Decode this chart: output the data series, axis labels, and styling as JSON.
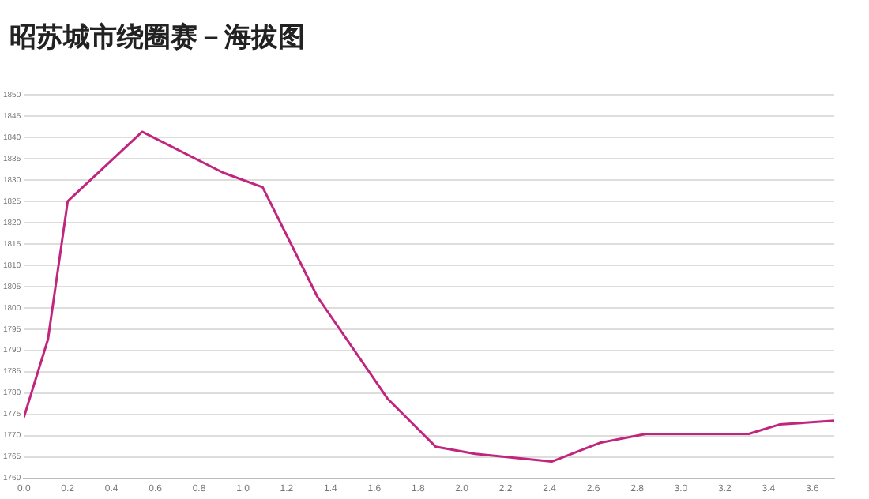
{
  "chart_data": {
    "type": "line",
    "title": "昭苏城市绕圈赛－海拔图",
    "x": [
      0,
      0.11,
      0.2,
      0.54,
      0.91,
      1.09,
      1.34,
      1.66,
      1.88,
      2.06,
      2.41,
      2.63,
      2.84,
      3.31,
      3.45,
      3.7
    ],
    "series": [
      {
        "color": "#c0267e",
        "values": [
          1774.3,
          1792.6,
          1825,
          1841.3,
          1831.7,
          1828.3,
          1802.6,
          1778.7,
          1767.4,
          1765.7,
          1763.9,
          1768.3,
          1770.4,
          1770.4,
          1772.6,
          1773.5
        ]
      }
    ],
    "xlim": [
      0,
      3.7
    ],
    "xticks": [
      {
        "value": 0,
        "label": "0.0"
      },
      0.2,
      0.4,
      0.6,
      0.8,
      {
        "value": 1,
        "label": "1.0"
      },
      1.2,
      1.4,
      1.6,
      1.8,
      {
        "value": 2,
        "label": "2.0"
      },
      2.2,
      2.4,
      2.6,
      2.8,
      {
        "value": 3,
        "label": "3.0"
      },
      3.2,
      3.4,
      3.6
    ],
    "ylim": [
      1760,
      1850
    ],
    "yticks": [
      1760,
      1765,
      1770,
      1775,
      1780,
      1785,
      1790,
      1795,
      1800,
      1805,
      1810,
      1815,
      1820,
      1825,
      1830,
      1835,
      1840,
      1845,
      1850
    ],
    "grid": "y",
    "legend": false,
    "marker": "none",
    "line_style": "solid"
  }
}
